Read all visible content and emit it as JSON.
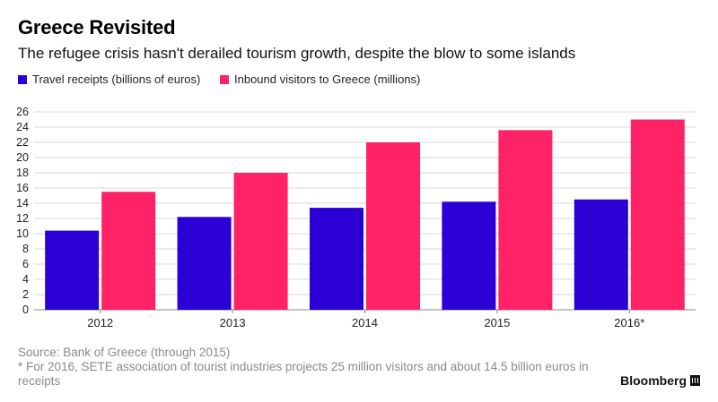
{
  "header": {
    "title": "Greece Revisited",
    "subtitle": "The refugee crisis hasn't derailed tourism growth, despite the blow to some islands"
  },
  "chart_data": {
    "type": "bar",
    "categories": [
      "2012",
      "2013",
      "2014",
      "2015",
      "2016*"
    ],
    "series": [
      {
        "name": "Travel receipts (billions of euros)",
        "color": "#2c00d4",
        "values": [
          10.4,
          12.2,
          13.4,
          14.2,
          14.5
        ]
      },
      {
        "name": "Inbound visitors to Greece (millions)",
        "color": "#ff2266",
        "values": [
          15.5,
          18.0,
          22.0,
          23.6,
          25.0
        ]
      }
    ],
    "ylim": [
      0,
      26
    ],
    "yticks": [
      0,
      2,
      4,
      6,
      8,
      10,
      12,
      14,
      16,
      18,
      20,
      22,
      24,
      26
    ],
    "xlabel": "",
    "ylabel": "",
    "grid": true,
    "legend_position": "top-left"
  },
  "footer": {
    "source": "Source: Bank of Greece (through 2015)",
    "note": "* For 2016, SETE association of tourist industries projects 25 million visitors and about 14.5 billion euros in receipts",
    "brand": "Bloomberg"
  },
  "icons": {
    "brand_icon": "bloomberg-terminal-icon"
  }
}
